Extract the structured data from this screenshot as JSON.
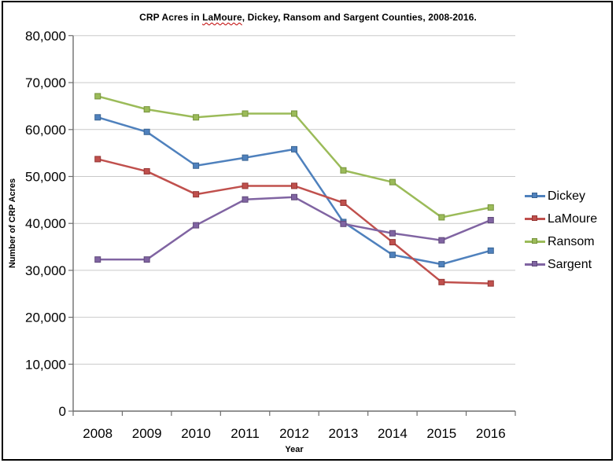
{
  "title": {
    "full_text": "CRP Acres in LaMoure, Dickey, Ransom and Sargent Counties, 2008-2016.",
    "part1": "CRP Acres in ",
    "misspelled_word": "LaMoure",
    "part2": ", Dickey, Ransom and Sargent Counties, 2008-2016."
  },
  "y_axis": {
    "title": "Number of CRP Acres",
    "tick_labels": [
      "0",
      "10,000",
      "20,000",
      "30,000",
      "40,000",
      "50,000",
      "60,000",
      "70,000",
      "80,000"
    ]
  },
  "x_axis": {
    "title": "Year",
    "tick_labels": [
      "2008",
      "2009",
      "2010",
      "2011",
      "2012",
      "2013",
      "2014",
      "2015",
      "2016"
    ]
  },
  "chart_data": {
    "type": "line",
    "title": "CRP Acres in LaMoure, Dickey, Ransom and Sargent Counties, 2008-2016.",
    "xlabel": "Year",
    "ylabel": "Number of CRP Acres",
    "x": [
      2008,
      2009,
      2010,
      2011,
      2012,
      2013,
      2014,
      2015,
      2016
    ],
    "ylim": [
      0,
      80000
    ],
    "ytick_interval": 10000,
    "grid": true,
    "legend_position": "right",
    "marker_style": "square",
    "series": [
      {
        "name": "Dickey",
        "color": "#4F81BD",
        "marker_border": "#3A6492",
        "values": [
          62600,
          59500,
          52300,
          54000,
          55800,
          40300,
          33300,
          31300,
          34200
        ]
      },
      {
        "name": "LaMoure",
        "color": "#C0504D",
        "marker_border": "#943634",
        "values": [
          53700,
          51100,
          46200,
          48000,
          48000,
          44400,
          36000,
          27500,
          27200
        ]
      },
      {
        "name": "Ransom",
        "color": "#9BBB59",
        "marker_border": "#76933C",
        "values": [
          67100,
          64300,
          62600,
          63400,
          63400,
          51300,
          48800,
          41300,
          43400
        ]
      },
      {
        "name": "Sargent",
        "color": "#8064A2",
        "marker_border": "#60497A",
        "values": [
          32300,
          32300,
          39600,
          45100,
          45600,
          39900,
          37900,
          36400,
          40700
        ]
      }
    ]
  },
  "colors": {
    "background": "#FFFFFF",
    "outer_border": "#000000",
    "gridline": "#C9C9C9",
    "axis": "#6E6E6E",
    "text": "#000000",
    "spellcheck_squiggle": "#C00000"
  }
}
